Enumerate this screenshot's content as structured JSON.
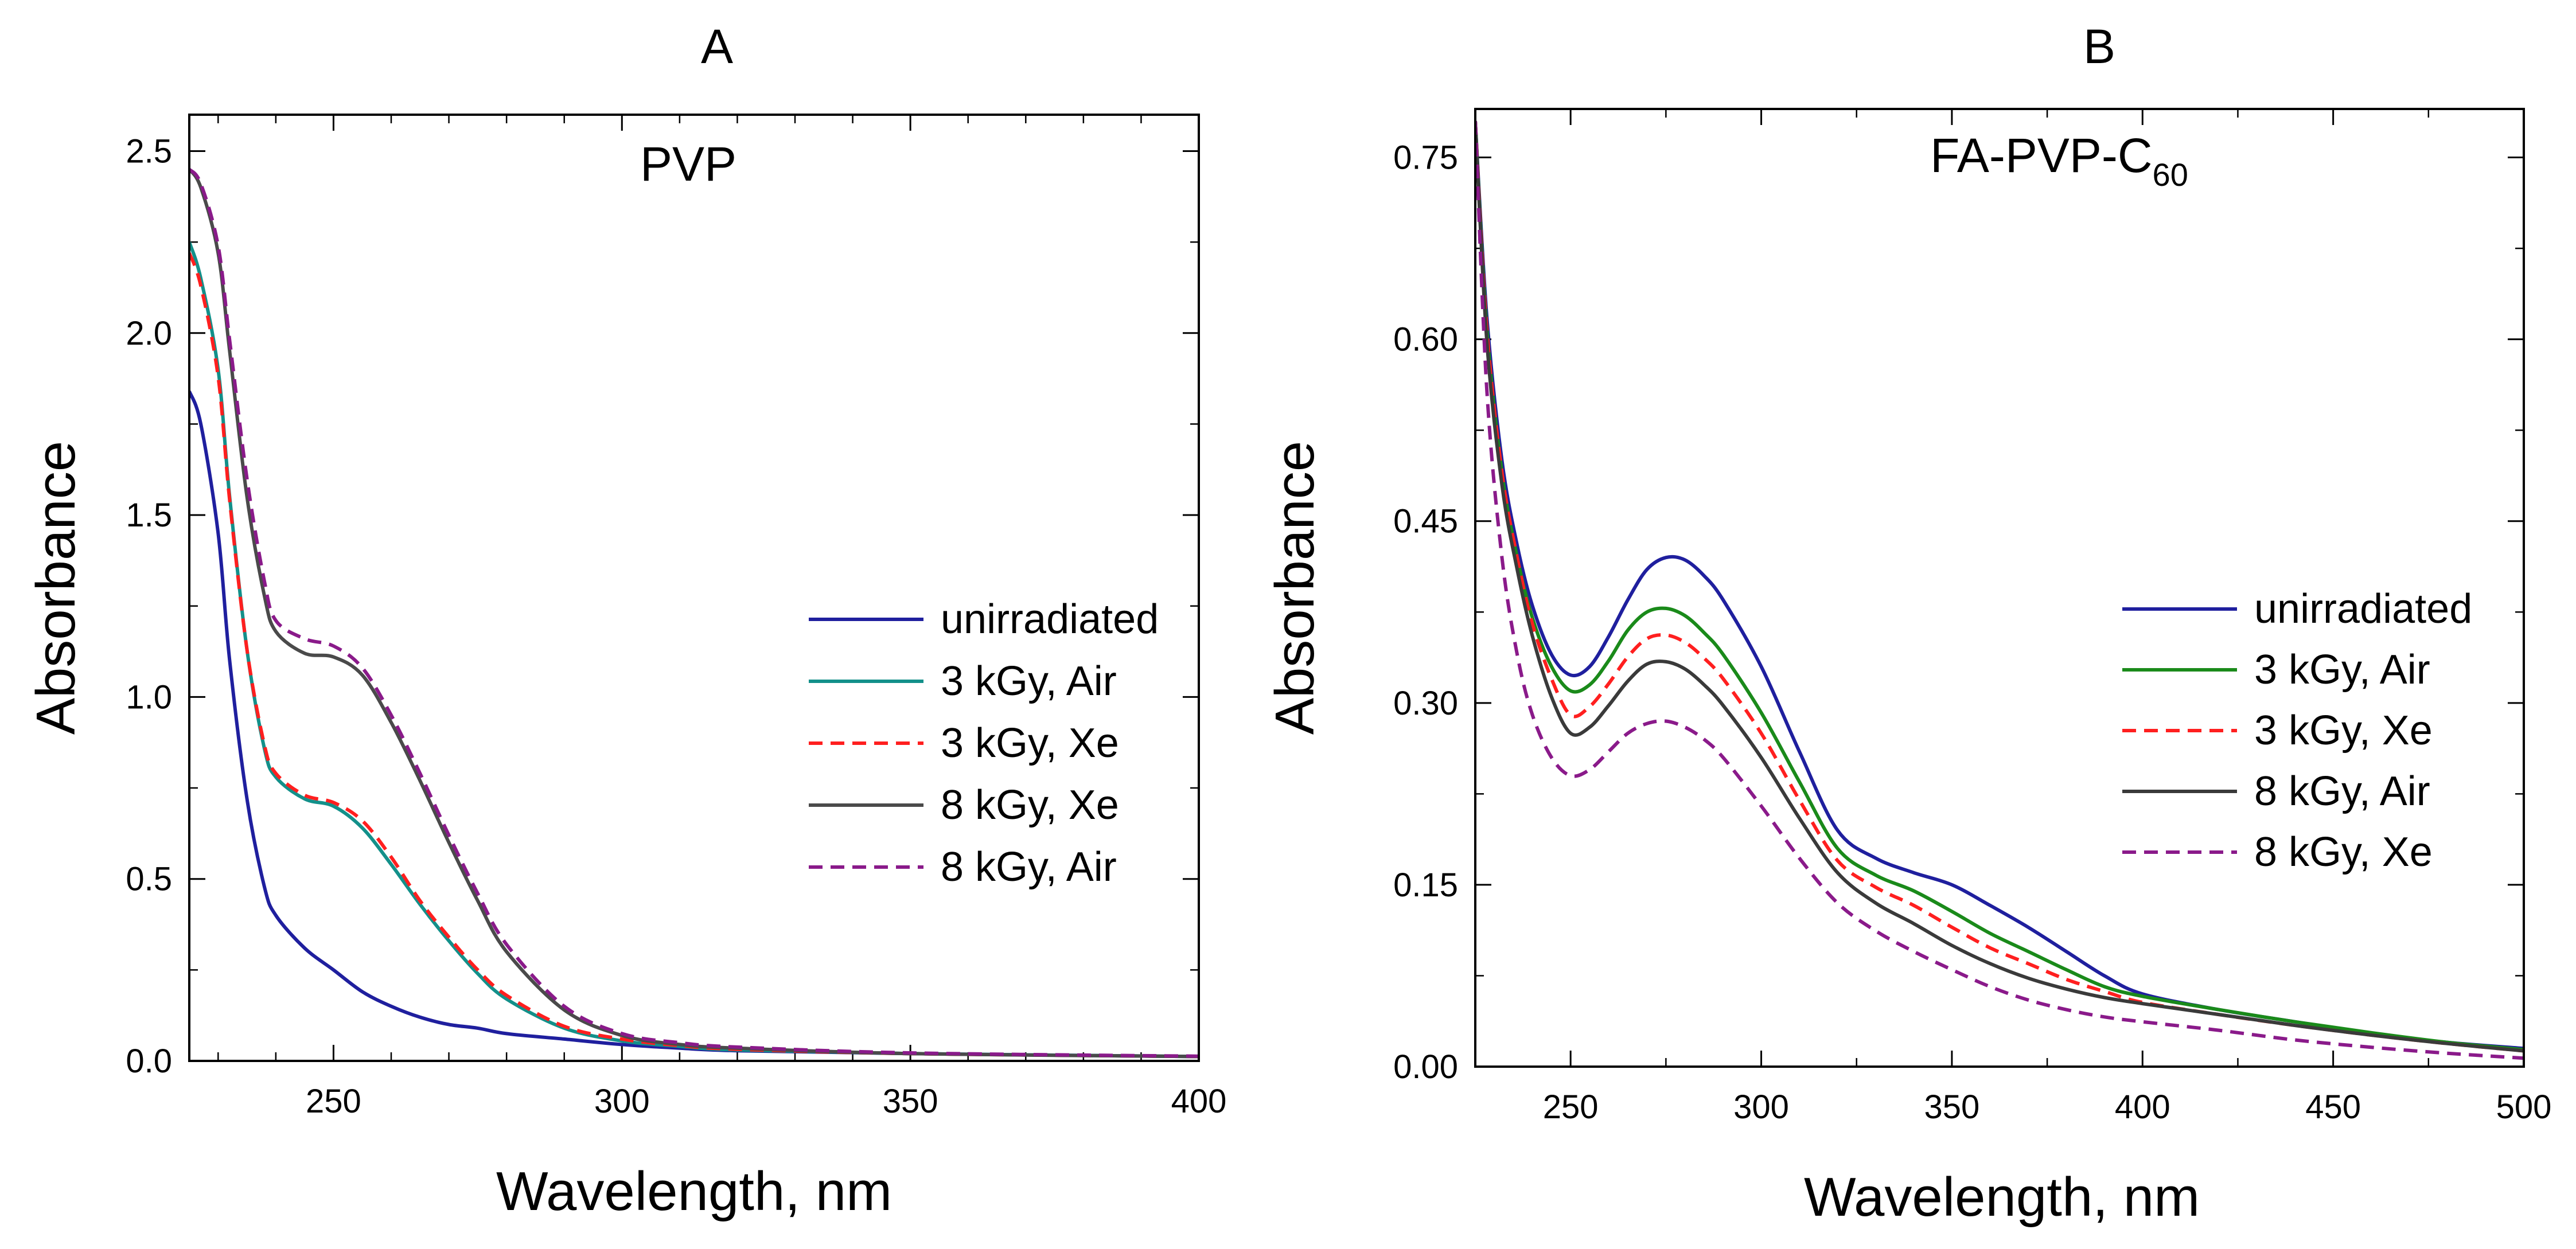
{
  "chart_data": [
    {
      "type": "line",
      "panel_label": "A",
      "title": "PVP",
      "xlabel": "Wavelength, nm",
      "ylabel": "Absorbance",
      "xlim": [
        225,
        400
      ],
      "ylim": [
        0,
        2.6
      ],
      "xticks": [
        250,
        300,
        350,
        400
      ],
      "xtick_labels": [
        "250",
        "300",
        "350",
        "400"
      ],
      "yticks": [
        0,
        0.5,
        1.0,
        1.5,
        2.0,
        2.5
      ],
      "ytick_labels": [
        "0.0",
        "0.5",
        "1.0",
        "1.5",
        "2.0",
        "2.5"
      ],
      "legend_position": "center-right",
      "x": [
        225,
        227,
        230,
        232,
        235,
        238,
        240,
        245,
        250,
        255,
        260,
        265,
        270,
        275,
        280,
        290,
        300,
        310,
        320,
        350,
        400
      ],
      "series": [
        {
          "name": "unirradiated",
          "color": "#1f1f9e",
          "dash": "solid",
          "values": [
            1.84,
            1.75,
            1.45,
            1.1,
            0.72,
            0.48,
            0.4,
            0.31,
            0.25,
            0.19,
            0.15,
            0.12,
            0.1,
            0.09,
            0.075,
            0.06,
            0.045,
            0.035,
            0.028,
            0.02,
            0.012
          ]
        },
        {
          "name": "3 kGy, Air",
          "color": "#13908a",
          "dash": "solid",
          "values": [
            2.25,
            2.15,
            1.9,
            1.55,
            1.13,
            0.86,
            0.78,
            0.72,
            0.7,
            0.64,
            0.54,
            0.43,
            0.33,
            0.24,
            0.17,
            0.09,
            0.055,
            0.04,
            0.03,
            0.02,
            0.012
          ]
        },
        {
          "name": "3 kGy, Xe",
          "color": "#ff1f1f",
          "dash": "dashed",
          "values": [
            2.22,
            2.13,
            1.88,
            1.54,
            1.13,
            0.87,
            0.79,
            0.73,
            0.71,
            0.66,
            0.56,
            0.44,
            0.34,
            0.25,
            0.18,
            0.095,
            0.06,
            0.042,
            0.032,
            0.02,
            0.012
          ]
        },
        {
          "name": "8 kGy, Xe",
          "color": "#4a4a4a",
          "dash": "solid",
          "values": [
            2.45,
            2.4,
            2.22,
            1.95,
            1.55,
            1.28,
            1.18,
            1.12,
            1.11,
            1.06,
            0.93,
            0.77,
            0.6,
            0.44,
            0.3,
            0.14,
            0.07,
            0.045,
            0.035,
            0.02,
            0.012
          ]
        },
        {
          "name": "8 kGy, Air",
          "color": "#8a1a8a",
          "dash": "dashed",
          "values": [
            2.45,
            2.41,
            2.24,
            1.98,
            1.6,
            1.32,
            1.21,
            1.16,
            1.14,
            1.08,
            0.95,
            0.79,
            0.62,
            0.46,
            0.32,
            0.15,
            0.075,
            0.05,
            0.038,
            0.022,
            0.013
          ]
        }
      ]
    },
    {
      "type": "line",
      "panel_label": "B",
      "title": "FA-PVP-C",
      "title_subscript": "60",
      "xlabel": "Wavelength, nm",
      "ylabel": "Absorbance",
      "xlim": [
        225,
        500
      ],
      "ylim": [
        0,
        0.79
      ],
      "xticks": [
        250,
        300,
        350,
        400,
        450,
        500
      ],
      "xtick_labels": [
        "250",
        "300",
        "350",
        "400",
        "450",
        "500"
      ],
      "yticks": [
        0,
        0.15,
        0.3,
        0.45,
        0.6,
        0.75
      ],
      "ytick_labels": [
        "0.00",
        "0.15",
        "0.30",
        "0.45",
        "0.60",
        "0.75"
      ],
      "legend_position": "center-right",
      "x": [
        225,
        228,
        232,
        236,
        240,
        245,
        250,
        255,
        260,
        265,
        270,
        275,
        280,
        285,
        290,
        300,
        310,
        320,
        330,
        340,
        350,
        360,
        370,
        380,
        390,
        400,
        420,
        440,
        460,
        480,
        500
      ],
      "series": [
        {
          "name": "unirradiated",
          "color": "#1f1f9e",
          "dash": "solid",
          "values": [
            0.78,
            0.62,
            0.5,
            0.43,
            0.38,
            0.34,
            0.323,
            0.33,
            0.355,
            0.385,
            0.41,
            0.42,
            0.418,
            0.405,
            0.385,
            0.33,
            0.26,
            0.195,
            0.172,
            0.16,
            0.15,
            0.133,
            0.115,
            0.095,
            0.075,
            0.06,
            0.047,
            0.037,
            0.027,
            0.02,
            0.015
          ]
        },
        {
          "name": "3 kGy, Air",
          "color": "#1a8a1a",
          "dash": "solid",
          "values": [
            0.78,
            0.61,
            0.49,
            0.42,
            0.37,
            0.33,
            0.31,
            0.315,
            0.335,
            0.36,
            0.375,
            0.378,
            0.372,
            0.358,
            0.34,
            0.292,
            0.235,
            0.18,
            0.158,
            0.145,
            0.128,
            0.11,
            0.095,
            0.08,
            0.066,
            0.058,
            0.047,
            0.037,
            0.028,
            0.02,
            0.014
          ]
        },
        {
          "name": "3 kGy, Xe",
          "color": "#ff1f1f",
          "dash": "dashed",
          "values": [
            0.78,
            0.61,
            0.49,
            0.42,
            0.365,
            0.32,
            0.29,
            0.297,
            0.316,
            0.338,
            0.353,
            0.356,
            0.35,
            0.337,
            0.32,
            0.275,
            0.22,
            0.17,
            0.148,
            0.133,
            0.115,
            0.098,
            0.085,
            0.072,
            0.062,
            0.053,
            0.043,
            0.034,
            0.026,
            0.019,
            0.013
          ]
        },
        {
          "name": "8 kGy, Air",
          "color": "#3a3a3a",
          "dash": "solid",
          "values": [
            0.78,
            0.6,
            0.48,
            0.41,
            0.355,
            0.305,
            0.275,
            0.28,
            0.298,
            0.318,
            0.332,
            0.334,
            0.328,
            0.315,
            0.298,
            0.255,
            0.205,
            0.16,
            0.135,
            0.118,
            0.1,
            0.085,
            0.073,
            0.064,
            0.057,
            0.052,
            0.043,
            0.034,
            0.026,
            0.019,
            0.013
          ]
        },
        {
          "name": "8 kGy, Xe",
          "color": "#8a1a8a",
          "dash": "dashed",
          "values": [
            0.78,
            0.56,
            0.42,
            0.34,
            0.29,
            0.255,
            0.24,
            0.245,
            0.26,
            0.275,
            0.283,
            0.285,
            0.28,
            0.27,
            0.255,
            0.215,
            0.172,
            0.135,
            0.112,
            0.095,
            0.08,
            0.066,
            0.055,
            0.047,
            0.041,
            0.037,
            0.03,
            0.022,
            0.016,
            0.011,
            0.007
          ]
        }
      ]
    }
  ]
}
